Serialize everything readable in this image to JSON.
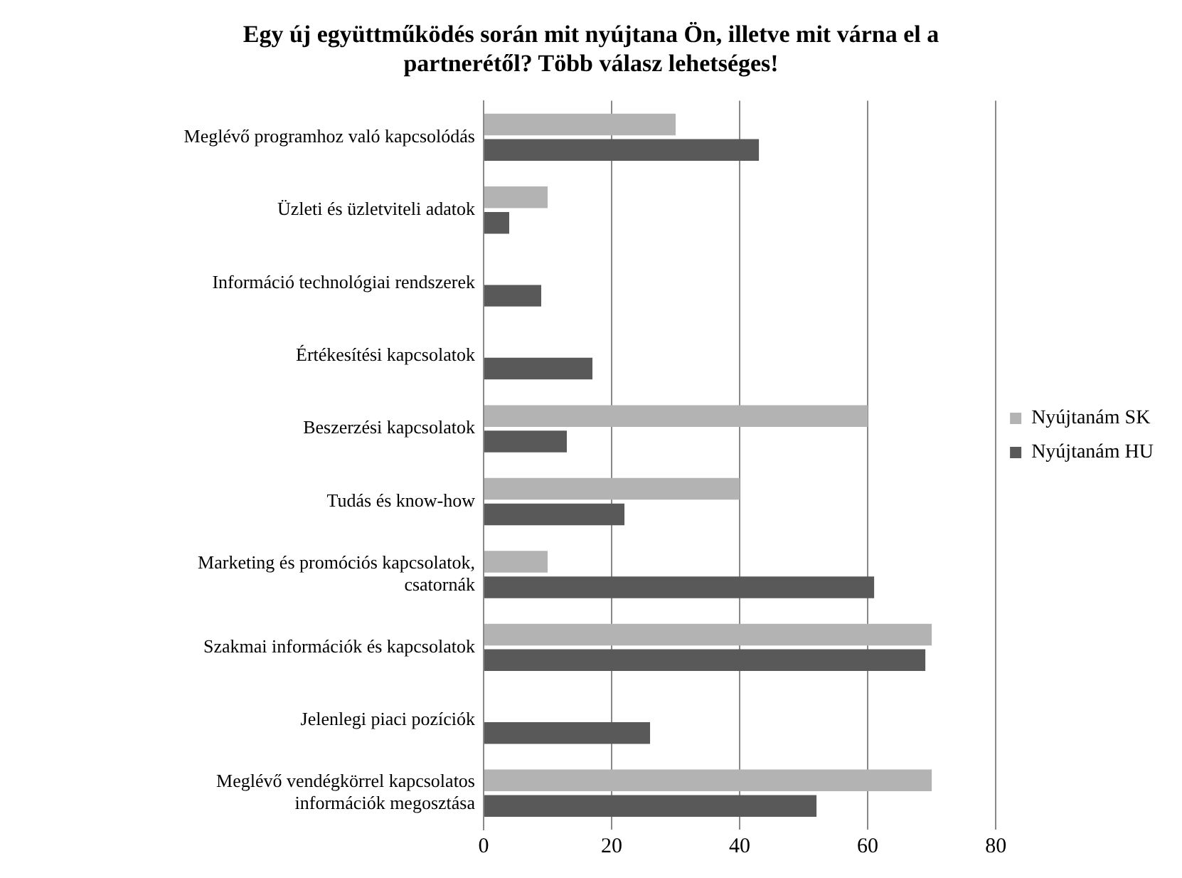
{
  "chart_data": {
    "type": "bar",
    "orientation": "horizontal",
    "title": "Egy új együttműködés során mit nyújtana Ön, illetve mit várna el a partnerétől? Több válasz lehetséges!",
    "categories": [
      "Meglévő programhoz való kapcsolódás",
      "Üzleti és üzletviteli adatok",
      "Információ technológiai rendszerek",
      "Értékesítési kapcsolatok",
      "Beszerzési kapcsolatok",
      "Tudás és know-how",
      "Marketing és promóciós kapcsolatok, csatornák",
      "Szakmai információk és kapcsolatok",
      "Jelenlegi piaci pozíciók",
      "Meglévő vendégkörrel kapcsolatos információk megosztása"
    ],
    "series": [
      {
        "name": "Nyújtanám SK",
        "color": "#b3b3b3",
        "values": [
          30,
          10,
          null,
          null,
          60,
          40,
          10,
          70,
          null,
          70
        ]
      },
      {
        "name": "Nyújtanám HU",
        "color": "#595959",
        "values": [
          43,
          4,
          9,
          17,
          13,
          22,
          61,
          69,
          26,
          52
        ]
      }
    ],
    "xlim": [
      0,
      80
    ],
    "xticks": [
      0,
      20,
      40,
      60,
      80
    ],
    "grid": "x",
    "legend": "right"
  }
}
